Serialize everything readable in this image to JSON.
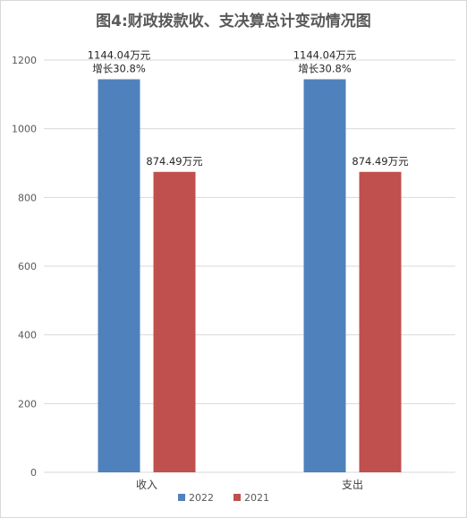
{
  "chart_data": {
    "type": "bar",
    "title": "图4:财政拨款收、支决算总计变动情况图",
    "categories": [
      "收入",
      "支出"
    ],
    "series": [
      {
        "name": "2022",
        "color": "#4f81bd",
        "values": [
          1144.04,
          1144.04
        ],
        "labels": [
          [
            "1144.04万元",
            "增长30.8%"
          ],
          [
            "1144.04万元",
            "增长30.8%"
          ]
        ]
      },
      {
        "name": "2021",
        "color": "#c0504d",
        "values": [
          874.49,
          874.49
        ],
        "labels": [
          [
            "874.49万元"
          ],
          [
            "874.49万元"
          ]
        ]
      }
    ],
    "yticks": [
      0,
      200,
      400,
      600,
      800,
      1000,
      1200
    ],
    "ylim": [
      0,
      1200
    ],
    "grid": true,
    "legend": "bottom"
  }
}
